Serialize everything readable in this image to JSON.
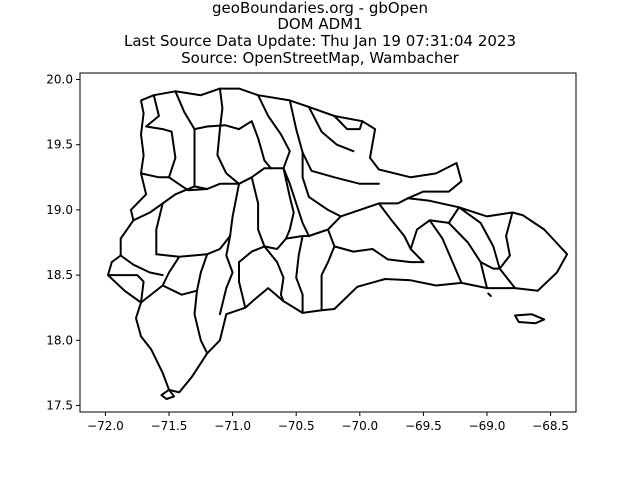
{
  "title_lines": [
    "geoBoundaries.org - gbOpen",
    "DOM ADM1",
    "Last Source Data Update: Thu Jan 19 07:31:04 2023",
    "Source: OpenStreetMap, Wambacher"
  ],
  "chart_data": {
    "type": "map",
    "title": "geoBoundaries.org - gbOpen DOM ADM1",
    "xlim": [
      -72.2,
      -68.3
    ],
    "ylim": [
      17.45,
      20.05
    ],
    "xticks": [
      -72.0,
      -71.5,
      -71.0,
      -70.5,
      -70.0,
      -69.5,
      -69.0,
      -68.5
    ],
    "xtick_labels": [
      "−72.0",
      "−71.5",
      "−71.0",
      "−70.5",
      "−70.0",
      "−69.5",
      "−69.0",
      "−68.5"
    ],
    "yticks": [
      17.5,
      18.0,
      18.5,
      19.0,
      19.5,
      20.0
    ],
    "ytick_labels": [
      "17.5",
      "18.0",
      "18.5",
      "19.0",
      "19.5",
      "20.0"
    ],
    "grid": false,
    "boundary_color": "#000000",
    "outline": [
      [
        -71.72,
        19.84
      ],
      [
        -71.62,
        19.88
      ],
      [
        -71.45,
        19.91
      ],
      [
        -71.25,
        19.88
      ],
      [
        -71.1,
        19.93
      ],
      [
        -70.95,
        19.93
      ],
      [
        -70.8,
        19.88
      ],
      [
        -70.55,
        19.84
      ],
      [
        -70.4,
        19.79
      ],
      [
        -70.2,
        19.72
      ],
      [
        -69.98,
        19.68
      ],
      [
        -69.88,
        19.62
      ],
      [
        -69.92,
        19.4
      ],
      [
        -69.85,
        19.31
      ],
      [
        -69.6,
        19.25
      ],
      [
        -69.4,
        19.28
      ],
      [
        -69.24,
        19.36
      ],
      [
        -69.2,
        19.22
      ],
      [
        -69.3,
        19.14
      ],
      [
        -69.5,
        19.14
      ],
      [
        -69.62,
        19.09
      ],
      [
        -69.45,
        19.07
      ],
      [
        -69.22,
        19.02
      ],
      [
        -69.0,
        18.95
      ],
      [
        -68.8,
        18.98
      ],
      [
        -68.72,
        18.96
      ],
      [
        -68.55,
        18.85
      ],
      [
        -68.37,
        18.66
      ],
      [
        -68.45,
        18.52
      ],
      [
        -68.6,
        18.38
      ],
      [
        -68.78,
        18.4
      ],
      [
        -69.0,
        18.4
      ],
      [
        -69.2,
        18.44
      ],
      [
        -69.4,
        18.42
      ],
      [
        -69.6,
        18.46
      ],
      [
        -69.8,
        18.47
      ],
      [
        -70.02,
        18.41
      ],
      [
        -70.2,
        18.24
      ],
      [
        -70.3,
        18.23
      ],
      [
        -70.45,
        18.21
      ],
      [
        -70.6,
        18.3
      ],
      [
        -70.72,
        18.4
      ],
      [
        -70.82,
        18.32
      ],
      [
        -70.9,
        18.25
      ],
      [
        -71.05,
        18.2
      ],
      [
        -71.1,
        18.0
      ],
      [
        -71.2,
        17.9
      ],
      [
        -71.32,
        17.72
      ],
      [
        -71.42,
        17.6
      ],
      [
        -71.5,
        17.62
      ],
      [
        -71.55,
        17.75
      ],
      [
        -71.64,
        17.93
      ],
      [
        -71.72,
        18.03
      ],
      [
        -71.76,
        18.17
      ],
      [
        -71.72,
        18.29
      ],
      [
        -71.85,
        18.38
      ],
      [
        -71.98,
        18.5
      ],
      [
        -71.95,
        18.6
      ],
      [
        -71.88,
        18.65
      ],
      [
        -71.88,
        18.78
      ],
      [
        -71.78,
        18.92
      ],
      [
        -71.8,
        19.0
      ],
      [
        -71.68,
        19.12
      ],
      [
        -71.72,
        19.28
      ],
      [
        -71.7,
        19.42
      ],
      [
        -71.72,
        19.58
      ],
      [
        -71.7,
        19.74
      ],
      [
        -71.72,
        19.84
      ]
    ],
    "internal_boundaries": [
      [
        [
          -71.62,
          19.88
        ],
        [
          -71.58,
          19.72
        ],
        [
          -71.68,
          19.64
        ],
        [
          -71.55,
          19.62
        ],
        [
          -71.48,
          19.6
        ]
      ],
      [
        [
          -71.45,
          19.91
        ],
        [
          -71.38,
          19.75
        ],
        [
          -71.3,
          19.62
        ],
        [
          -71.2,
          19.64
        ],
        [
          -71.06,
          19.65
        ],
        [
          -70.95,
          19.62
        ]
      ],
      [
        [
          -71.1,
          19.93
        ],
        [
          -71.08,
          19.78
        ],
        [
          -71.1,
          19.62
        ]
      ],
      [
        [
          -71.48,
          19.6
        ],
        [
          -71.45,
          19.4
        ],
        [
          -71.5,
          19.25
        ]
      ],
      [
        [
          -71.72,
          19.28
        ],
        [
          -71.58,
          19.25
        ],
        [
          -71.5,
          19.25
        ],
        [
          -71.35,
          19.15
        ],
        [
          -71.2,
          19.16
        ]
      ],
      [
        [
          -71.3,
          19.62
        ],
        [
          -71.3,
          19.38
        ],
        [
          -71.3,
          19.18
        ]
      ],
      [
        [
          -71.1,
          19.62
        ],
        [
          -71.12,
          19.42
        ],
        [
          -71.05,
          19.28
        ],
        [
          -70.95,
          19.2
        ]
      ],
      [
        [
          -70.95,
          19.62
        ],
        [
          -70.85,
          19.68
        ],
        [
          -70.8,
          19.55
        ],
        [
          -70.75,
          19.38
        ],
        [
          -70.7,
          19.32
        ]
      ],
      [
        [
          -70.8,
          19.88
        ],
        [
          -70.72,
          19.72
        ],
        [
          -70.62,
          19.58
        ],
        [
          -70.55,
          19.45
        ],
        [
          -70.6,
          19.32
        ]
      ],
      [
        [
          -70.55,
          19.84
        ],
        [
          -70.5,
          19.62
        ],
        [
          -70.45,
          19.44
        ]
      ],
      [
        [
          -70.4,
          19.79
        ],
        [
          -70.3,
          19.6
        ],
        [
          -70.18,
          19.5
        ],
        [
          -70.05,
          19.45
        ]
      ],
      [
        [
          -70.2,
          19.72
        ],
        [
          -70.1,
          19.62
        ],
        [
          -70.0,
          19.62
        ],
        [
          -69.98,
          19.68
        ]
      ],
      [
        [
          -70.45,
          19.44
        ],
        [
          -70.38,
          19.3
        ],
        [
          -70.2,
          19.25
        ],
        [
          -70.0,
          19.2
        ],
        [
          -69.85,
          19.2
        ]
      ],
      [
        [
          -71.78,
          18.92
        ],
        [
          -71.65,
          18.98
        ],
        [
          -71.55,
          19.05
        ],
        [
          -71.45,
          19.12
        ],
        [
          -71.3,
          19.18
        ],
        [
          -71.2,
          19.16
        ],
        [
          -71.1,
          19.2
        ],
        [
          -70.95,
          19.2
        ],
        [
          -70.85,
          19.25
        ],
        [
          -70.75,
          19.32
        ],
        [
          -70.7,
          19.32
        ],
        [
          -70.6,
          19.32
        ]
      ],
      [
        [
          -71.55,
          19.05
        ],
        [
          -71.6,
          18.85
        ],
        [
          -71.6,
          18.66
        ]
      ],
      [
        [
          -71.6,
          18.66
        ],
        [
          -71.42,
          18.64
        ],
        [
          -71.2,
          18.66
        ],
        [
          -71.1,
          18.7
        ],
        [
          -71.02,
          18.8
        ]
      ],
      [
        [
          -71.02,
          18.8
        ],
        [
          -71.0,
          18.95
        ],
        [
          -70.98,
          19.05
        ],
        [
          -70.95,
          19.2
        ]
      ],
      [
        [
          -70.85,
          19.25
        ],
        [
          -70.8,
          19.05
        ],
        [
          -70.8,
          18.85
        ],
        [
          -70.75,
          18.72
        ]
      ],
      [
        [
          -70.6,
          19.32
        ],
        [
          -70.55,
          19.2
        ],
        [
          -70.5,
          19.05
        ],
        [
          -70.45,
          18.9
        ],
        [
          -70.4,
          18.8
        ]
      ],
      [
        [
          -70.45,
          19.44
        ],
        [
          -70.45,
          19.25
        ],
        [
          -70.4,
          19.1
        ],
        [
          -70.25,
          19.0
        ],
        [
          -70.15,
          18.95
        ],
        [
          -70.0,
          19.0
        ],
        [
          -69.85,
          19.05
        ],
        [
          -69.7,
          19.05
        ],
        [
          -69.62,
          19.09
        ]
      ],
      [
        [
          -70.6,
          19.32
        ],
        [
          -70.55,
          19.1
        ],
        [
          -70.52,
          18.98
        ],
        [
          -70.55,
          18.85
        ],
        [
          -70.58,
          18.78
        ]
      ],
      [
        [
          -70.58,
          18.78
        ],
        [
          -70.45,
          18.8
        ],
        [
          -70.4,
          18.8
        ],
        [
          -70.25,
          18.85
        ],
        [
          -70.15,
          18.95
        ]
      ],
      [
        [
          -70.25,
          18.85
        ],
        [
          -70.2,
          18.72
        ],
        [
          -70.05,
          18.68
        ],
        [
          -69.9,
          18.7
        ]
      ],
      [
        [
          -69.85,
          19.05
        ],
        [
          -69.75,
          18.92
        ],
        [
          -69.65,
          18.8
        ],
        [
          -69.6,
          18.7
        ],
        [
          -69.5,
          18.6
        ]
      ],
      [
        [
          -69.9,
          18.7
        ],
        [
          -69.78,
          18.62
        ],
        [
          -69.6,
          18.6
        ],
        [
          -69.5,
          18.6
        ]
      ],
      [
        [
          -70.2,
          18.72
        ],
        [
          -70.25,
          18.6
        ],
        [
          -70.3,
          18.5
        ],
        [
          -70.3,
          18.35
        ],
        [
          -70.3,
          18.23
        ]
      ],
      [
        [
          -70.45,
          18.8
        ],
        [
          -70.48,
          18.65
        ],
        [
          -70.5,
          18.48
        ],
        [
          -70.45,
          18.35
        ],
        [
          -70.45,
          18.21
        ]
      ],
      [
        [
          -70.75,
          18.72
        ],
        [
          -70.65,
          18.6
        ],
        [
          -70.6,
          18.48
        ],
        [
          -70.62,
          18.35
        ],
        [
          -70.6,
          18.3
        ]
      ],
      [
        [
          -70.58,
          18.78
        ],
        [
          -70.65,
          18.7
        ],
        [
          -70.75,
          18.72
        ],
        [
          -70.85,
          18.68
        ],
        [
          -70.95,
          18.6
        ]
      ],
      [
        [
          -70.95,
          18.6
        ],
        [
          -70.95,
          18.45
        ],
        [
          -70.9,
          18.25
        ]
      ],
      [
        [
          -71.02,
          18.8
        ],
        [
          -71.05,
          18.65
        ],
        [
          -71.0,
          18.52
        ],
        [
          -71.05,
          18.4
        ],
        [
          -71.1,
          18.2
        ]
      ],
      [
        [
          -71.2,
          18.66
        ],
        [
          -71.25,
          18.52
        ],
        [
          -71.28,
          18.38
        ],
        [
          -71.3,
          18.2
        ],
        [
          -71.25,
          18.0
        ],
        [
          -71.2,
          17.9
        ]
      ],
      [
        [
          -71.42,
          18.64
        ],
        [
          -71.5,
          18.52
        ],
        [
          -71.55,
          18.42
        ],
        [
          -71.72,
          18.29
        ]
      ],
      [
        [
          -71.88,
          18.65
        ],
        [
          -71.78,
          18.58
        ],
        [
          -71.65,
          18.52
        ],
        [
          -71.55,
          18.5
        ]
      ],
      [
        [
          -71.98,
          18.5
        ],
        [
          -71.85,
          18.5
        ],
        [
          -71.75,
          18.5
        ],
        [
          -71.7,
          18.45
        ],
        [
          -71.72,
          18.29
        ]
      ],
      [
        [
          -71.55,
          18.42
        ],
        [
          -71.4,
          18.35
        ],
        [
          -71.28,
          18.38
        ]
      ],
      [
        [
          -69.6,
          18.7
        ],
        [
          -69.55,
          18.85
        ],
        [
          -69.45,
          18.92
        ],
        [
          -69.3,
          18.9
        ],
        [
          -69.22,
          19.02
        ]
      ],
      [
        [
          -69.45,
          18.92
        ],
        [
          -69.35,
          18.78
        ],
        [
          -69.28,
          18.62
        ],
        [
          -69.2,
          18.44
        ]
      ],
      [
        [
          -69.3,
          18.9
        ],
        [
          -69.15,
          18.75
        ],
        [
          -69.05,
          18.6
        ],
        [
          -69.0,
          18.4
        ]
      ],
      [
        [
          -69.22,
          19.02
        ],
        [
          -69.05,
          18.9
        ],
        [
          -68.95,
          18.72
        ],
        [
          -68.9,
          18.55
        ],
        [
          -68.78,
          18.4
        ]
      ],
      [
        [
          -69.05,
          18.6
        ],
        [
          -68.95,
          18.55
        ],
        [
          -68.9,
          18.55
        ]
      ],
      [
        [
          -68.8,
          18.98
        ],
        [
          -68.85,
          18.8
        ],
        [
          -68.82,
          18.65
        ],
        [
          -68.9,
          18.55
        ]
      ]
    ],
    "islands": [
      [
        [
          -71.5,
          17.62
        ],
        [
          -71.56,
          17.58
        ],
        [
          -71.52,
          17.55
        ],
        [
          -71.46,
          17.57
        ],
        [
          -71.5,
          17.62
        ]
      ],
      [
        [
          -68.78,
          18.19
        ],
        [
          -68.65,
          18.2
        ],
        [
          -68.55,
          18.16
        ],
        [
          -68.62,
          18.13
        ],
        [
          -68.75,
          18.14
        ],
        [
          -68.78,
          18.19
        ]
      ],
      [
        [
          -68.99,
          18.36
        ],
        [
          -68.97,
          18.34
        ]
      ]
    ]
  }
}
